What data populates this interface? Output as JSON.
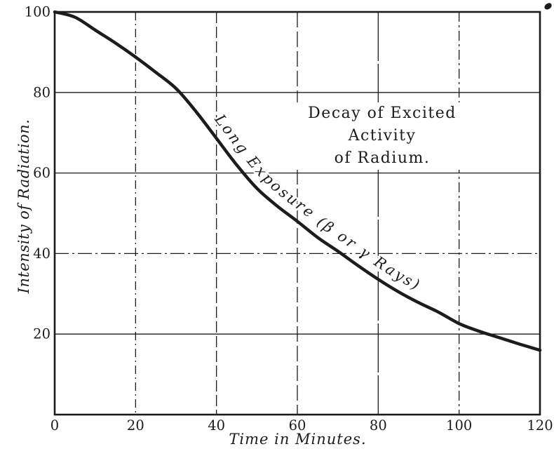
{
  "page": {
    "background": "#ffffff",
    "ink": "#1c1c1c"
  },
  "chart_data": {
    "type": "line",
    "title_line1": "Decay of Excited Activity",
    "title_line2": "of Radium.",
    "xlabel": "Time in Minutes.",
    "ylabel": "Intensity of Radiation.",
    "xlim": [
      0,
      120
    ],
    "ylim": [
      0,
      100
    ],
    "x_ticks": [
      0,
      20,
      40,
      60,
      80,
      100,
      120
    ],
    "y_ticks": [
      20,
      40,
      60,
      80,
      100
    ],
    "grid": true,
    "legend": "none",
    "curve_label": "Long Exposure (β or γ Rays)",
    "series": [
      {
        "name": "Long Exposure (β or γ Rays)",
        "x": [
          0,
          5,
          10,
          15,
          20,
          25,
          30,
          35,
          40,
          45,
          50,
          55,
          60,
          65,
          70,
          75,
          80,
          85,
          90,
          95,
          100,
          105,
          110,
          115,
          120
        ],
        "y": [
          100,
          98.7,
          95.5,
          92.3,
          88.8,
          85,
          81,
          75.2,
          68.6,
          62,
          56.2,
          51.8,
          48,
          44,
          40.6,
          37,
          33.6,
          30.5,
          27.8,
          25.4,
          22.6,
          20.7,
          19.1,
          17.5,
          16
        ]
      }
    ]
  }
}
